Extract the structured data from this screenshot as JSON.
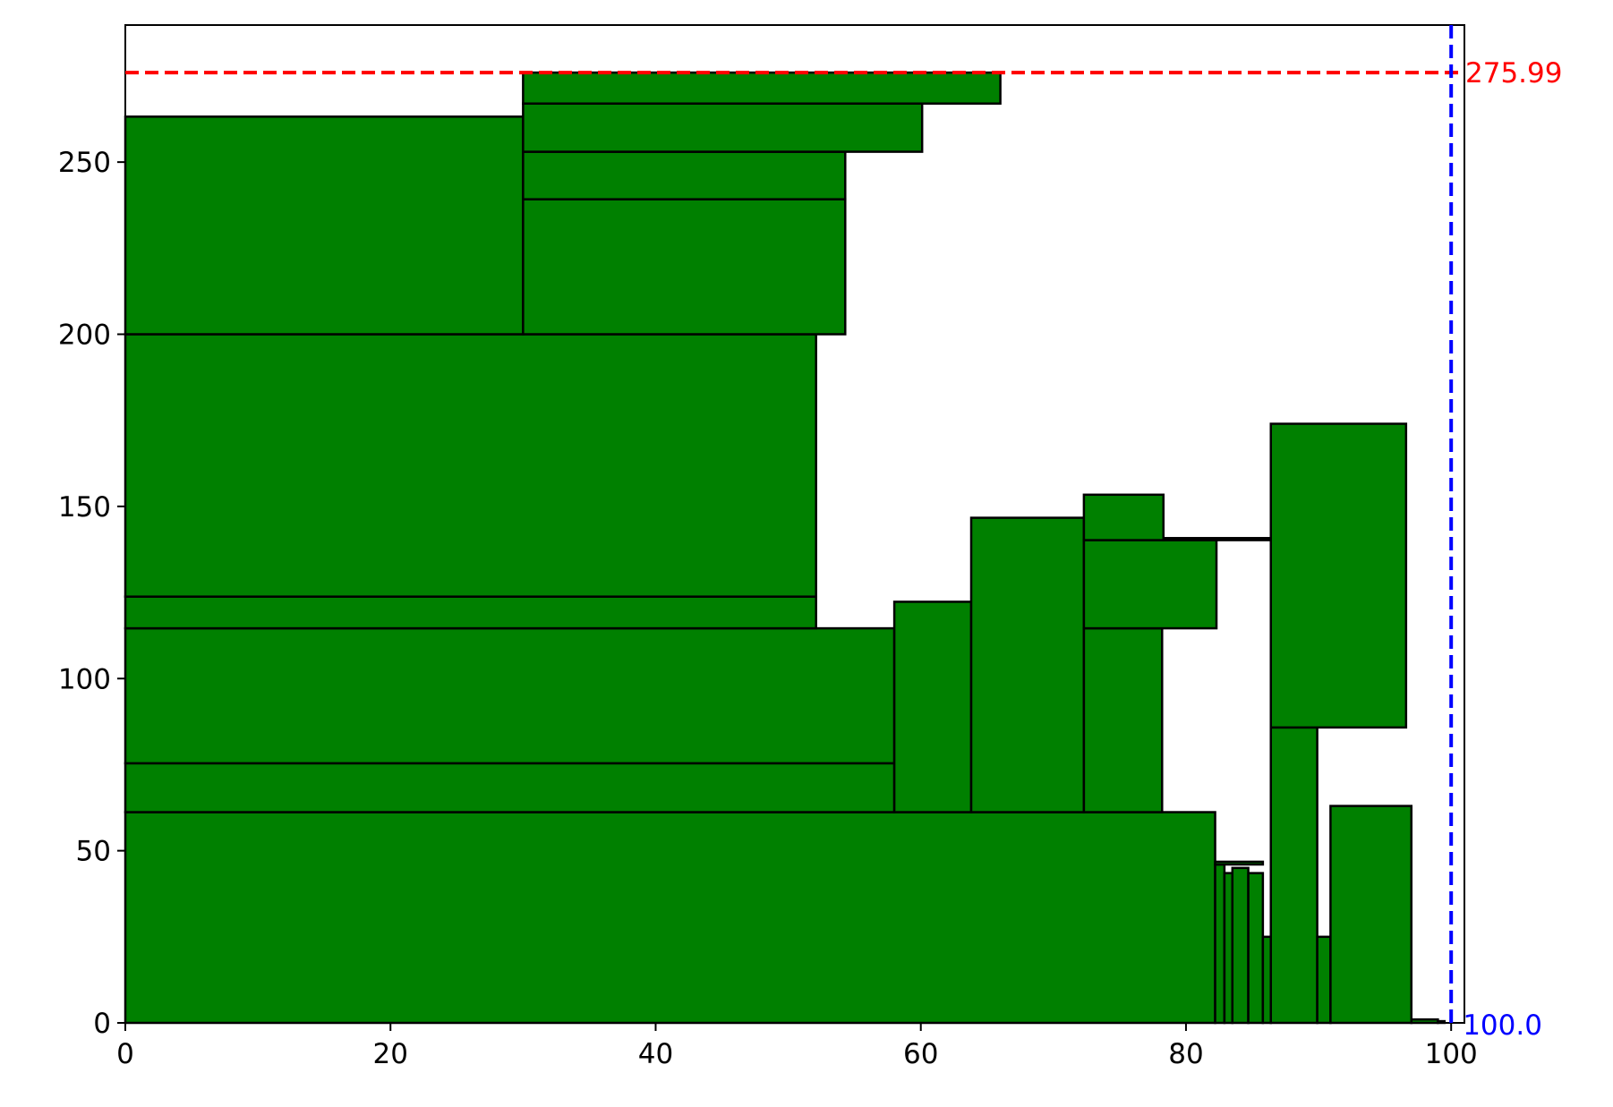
{
  "chart_data": {
    "type": "bar",
    "title": "",
    "xlabel": "",
    "ylabel": "",
    "xlim": [
      0,
      101
    ],
    "ylim": [
      0,
      289.8
    ],
    "x_ticks": [
      0,
      20,
      40,
      60,
      80,
      100
    ],
    "y_ticks": [
      0,
      50,
      100,
      150,
      200,
      250
    ],
    "grid": false,
    "bar_color": "#008000",
    "edge_color": "#000000",
    "rectangles": [
      {
        "x": 0,
        "y": 0,
        "w": 82.2,
        "h": 61.2
      },
      {
        "x": 0,
        "y": 61.2,
        "w": 58,
        "h": 14.2
      },
      {
        "x": 0,
        "y": 75.4,
        "w": 58,
        "h": 39.2
      },
      {
        "x": 0,
        "y": 114.6,
        "w": 52.1,
        "h": 9.2
      },
      {
        "x": 0,
        "y": 123.8,
        "w": 52.1,
        "h": 76.2
      },
      {
        "x": 0,
        "y": 200,
        "w": 30,
        "h": 63.2
      },
      {
        "x": 30,
        "y": 200,
        "w": 24.3,
        "h": 39.2
      },
      {
        "x": 30,
        "y": 239.2,
        "w": 24.3,
        "h": 13.8
      },
      {
        "x": 30,
        "y": 253,
        "w": 30.1,
        "h": 14
      },
      {
        "x": 30,
        "y": 267,
        "w": 36,
        "h": 9
      },
      {
        "x": 58,
        "y": 61.2,
        "w": 5.8,
        "h": 61.1
      },
      {
        "x": 63.8,
        "y": 61.2,
        "w": 8.5,
        "h": 85.5
      },
      {
        "x": 72.3,
        "y": 61.2,
        "w": 5.9,
        "h": 53.4
      },
      {
        "x": 72.3,
        "y": 114.6,
        "w": 10,
        "h": 25.6
      },
      {
        "x": 72.3,
        "y": 140.2,
        "w": 6,
        "h": 13.2
      },
      {
        "x": 78.3,
        "y": 140.2,
        "w": 8.1,
        "h": 0.6
      },
      {
        "x": 82.2,
        "y": 0,
        "w": 0.7,
        "h": 46
      },
      {
        "x": 82.9,
        "y": 0,
        "w": 0.6,
        "h": 43.5
      },
      {
        "x": 83.5,
        "y": 0,
        "w": 1.2,
        "h": 45
      },
      {
        "x": 84.7,
        "y": 0,
        "w": 1.1,
        "h": 43.5
      },
      {
        "x": 82.2,
        "y": 46,
        "w": 3.6,
        "h": 0.8
      },
      {
        "x": 85.8,
        "y": 0,
        "w": 0.6,
        "h": 25
      },
      {
        "x": 86.4,
        "y": 0,
        "w": 3.5,
        "h": 85.8
      },
      {
        "x": 86.4,
        "y": 85.8,
        "w": 10.2,
        "h": 88.2
      },
      {
        "x": 89.9,
        "y": 0,
        "w": 1,
        "h": 25
      },
      {
        "x": 90.9,
        "y": 0,
        "w": 6.1,
        "h": 63
      },
      {
        "x": 97,
        "y": 0,
        "w": 2,
        "h": 1
      },
      {
        "x": 99,
        "y": 0,
        "w": 0.5,
        "h": 0.5
      }
    ],
    "hline": {
      "value": 275.99,
      "label": "275.99",
      "color": "#ff0000",
      "style": "dashed"
    },
    "vline": {
      "value": 100.0,
      "label": "100.0",
      "color": "#0000ff",
      "style": "dashed"
    }
  }
}
